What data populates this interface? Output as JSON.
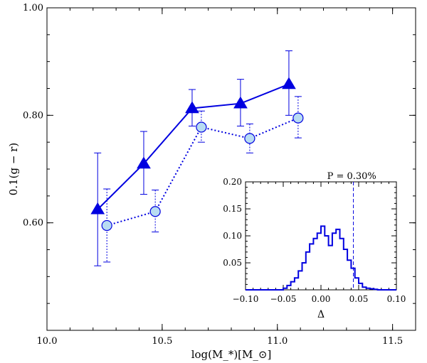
{
  "chart_data": [
    {
      "type": "line",
      "title": "",
      "xlabel": "log(M_*)[M_⊙]",
      "ylabel": "0.1(g − r)",
      "xlim": [
        10.0,
        11.6
      ],
      "ylim": [
        0.4,
        1.0
      ],
      "x_ticks": [
        10.0,
        10.5,
        11.0,
        11.5
      ],
      "x_tick_labels": [
        "10.0",
        "10.5",
        "11.0",
        "11.5"
      ],
      "y_ticks": [
        0.6,
        0.8,
        1.0
      ],
      "y_tick_labels": [
        "0.60",
        "0.80",
        "1.00"
      ],
      "grid": false,
      "series": [
        {
          "marker": "triangle",
          "line_style": "solid",
          "color": "#0000e0",
          "x": [
            10.22,
            10.42,
            10.63,
            10.84,
            11.05
          ],
          "y": [
            0.625,
            0.71,
            0.813,
            0.822,
            0.858
          ],
          "err_low": [
            0.105,
            0.057,
            0.033,
            0.042,
            0.058
          ],
          "err_high": [
            0.105,
            0.06,
            0.035,
            0.045,
            0.062
          ]
        },
        {
          "marker": "circle",
          "marker_fill": "#b8dcf2",
          "line_style": "dotted",
          "color": "#0000e0",
          "x": [
            10.26,
            10.47,
            10.67,
            10.88,
            11.09
          ],
          "y": [
            0.595,
            0.621,
            0.778,
            0.757,
            0.795
          ],
          "err_low": [
            0.068,
            0.038,
            0.028,
            0.027,
            0.037
          ],
          "err_high": [
            0.068,
            0.04,
            0.03,
            0.027,
            0.04
          ]
        }
      ]
    },
    {
      "type": "histogram",
      "title": "",
      "xlabel": "Δ",
      "ylabel": "",
      "xlim": [
        -0.1,
        0.1
      ],
      "ylim": [
        0.0,
        0.2
      ],
      "x_ticks": [
        -0.1,
        -0.05,
        0.0,
        0.05,
        0.1
      ],
      "x_tick_labels": [
        "−0.10",
        "−0.05",
        "0.00",
        "0.05",
        "0.10"
      ],
      "y_ticks": [
        0.05,
        0.1,
        0.15,
        0.2
      ],
      "y_tick_labels": [
        "0.05",
        "0.10",
        "0.15",
        "0.20"
      ],
      "grid": false,
      "color": "#0000e0",
      "bin_width": 0.005,
      "bin_start": -0.1,
      "values": [
        0,
        0,
        0,
        0,
        0,
        0,
        0,
        0,
        0,
        0,
        0.003,
        0.008,
        0.015,
        0.022,
        0.035,
        0.05,
        0.07,
        0.085,
        0.095,
        0.105,
        0.118,
        0.1,
        0.082,
        0.105,
        0.112,
        0.095,
        0.075,
        0.055,
        0.04,
        0.022,
        0.012,
        0.005,
        0.003,
        0.002,
        0.001,
        0,
        0,
        0,
        0,
        0
      ],
      "vline_x": 0.043,
      "annotation": "P = 0.30%"
    }
  ]
}
